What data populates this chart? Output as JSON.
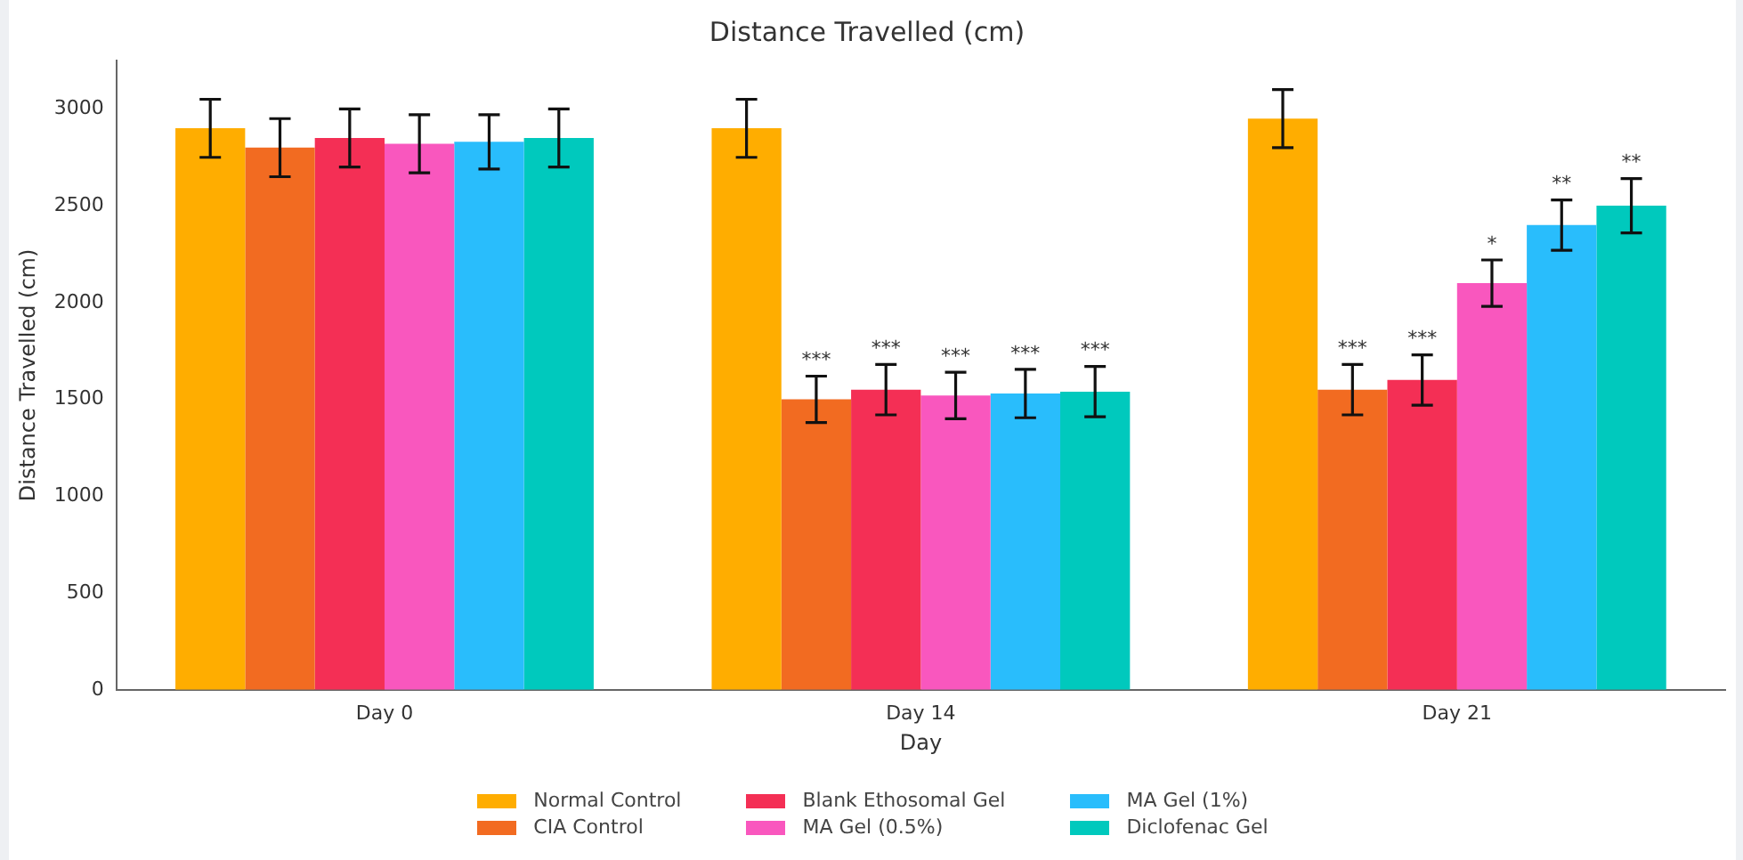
{
  "chart_data": {
    "type": "bar",
    "title": "Distance Travelled (cm)",
    "xlabel": "Day",
    "ylabel": "Distance Travelled (cm)",
    "categories": [
      "Day 0",
      "Day 14",
      "Day 21"
    ],
    "series": [
      {
        "name": "Normal Control",
        "color": "#ffad00",
        "values": [
          2900,
          2900,
          2950
        ],
        "errors": [
          150,
          150,
          150
        ]
      },
      {
        "name": "CIA Control",
        "color": "#f26b21",
        "values": [
          2800,
          1500,
          1550
        ],
        "errors": [
          150,
          120,
          130
        ],
        "value_labels": [
          null,
          "***",
          "***"
        ]
      },
      {
        "name": "Blank Ethosomal Gel",
        "color": "#f42f55",
        "values": [
          2850,
          1550,
          1600
        ],
        "errors": [
          150,
          130,
          130
        ],
        "value_labels": [
          null,
          "***",
          "***"
        ]
      },
      {
        "name": "MA Gel (0.5%)",
        "color": "#f957be",
        "values": [
          2820,
          1520,
          2100
        ],
        "errors": [
          150,
          120,
          120
        ],
        "value_labels": [
          null,
          "***",
          "*"
        ]
      },
      {
        "name": "MA Gel (1%)",
        "color": "#29bdfc",
        "values": [
          2830,
          1530,
          2400
        ],
        "errors": [
          140,
          125,
          130
        ],
        "value_labels": [
          null,
          "***",
          "**"
        ]
      },
      {
        "name": "Diclofenac Gel",
        "color": "#00c9bd",
        "values": [
          2850,
          1540,
          2500
        ],
        "errors": [
          150,
          130,
          140
        ],
        "value_labels": [
          null,
          "***",
          "**"
        ]
      }
    ],
    "ylim": [
      0,
      3250
    ],
    "yticks": [
      0,
      500,
      1000,
      1500,
      2000,
      2500,
      3000
    ],
    "grid": false,
    "legend": "bottom"
  }
}
